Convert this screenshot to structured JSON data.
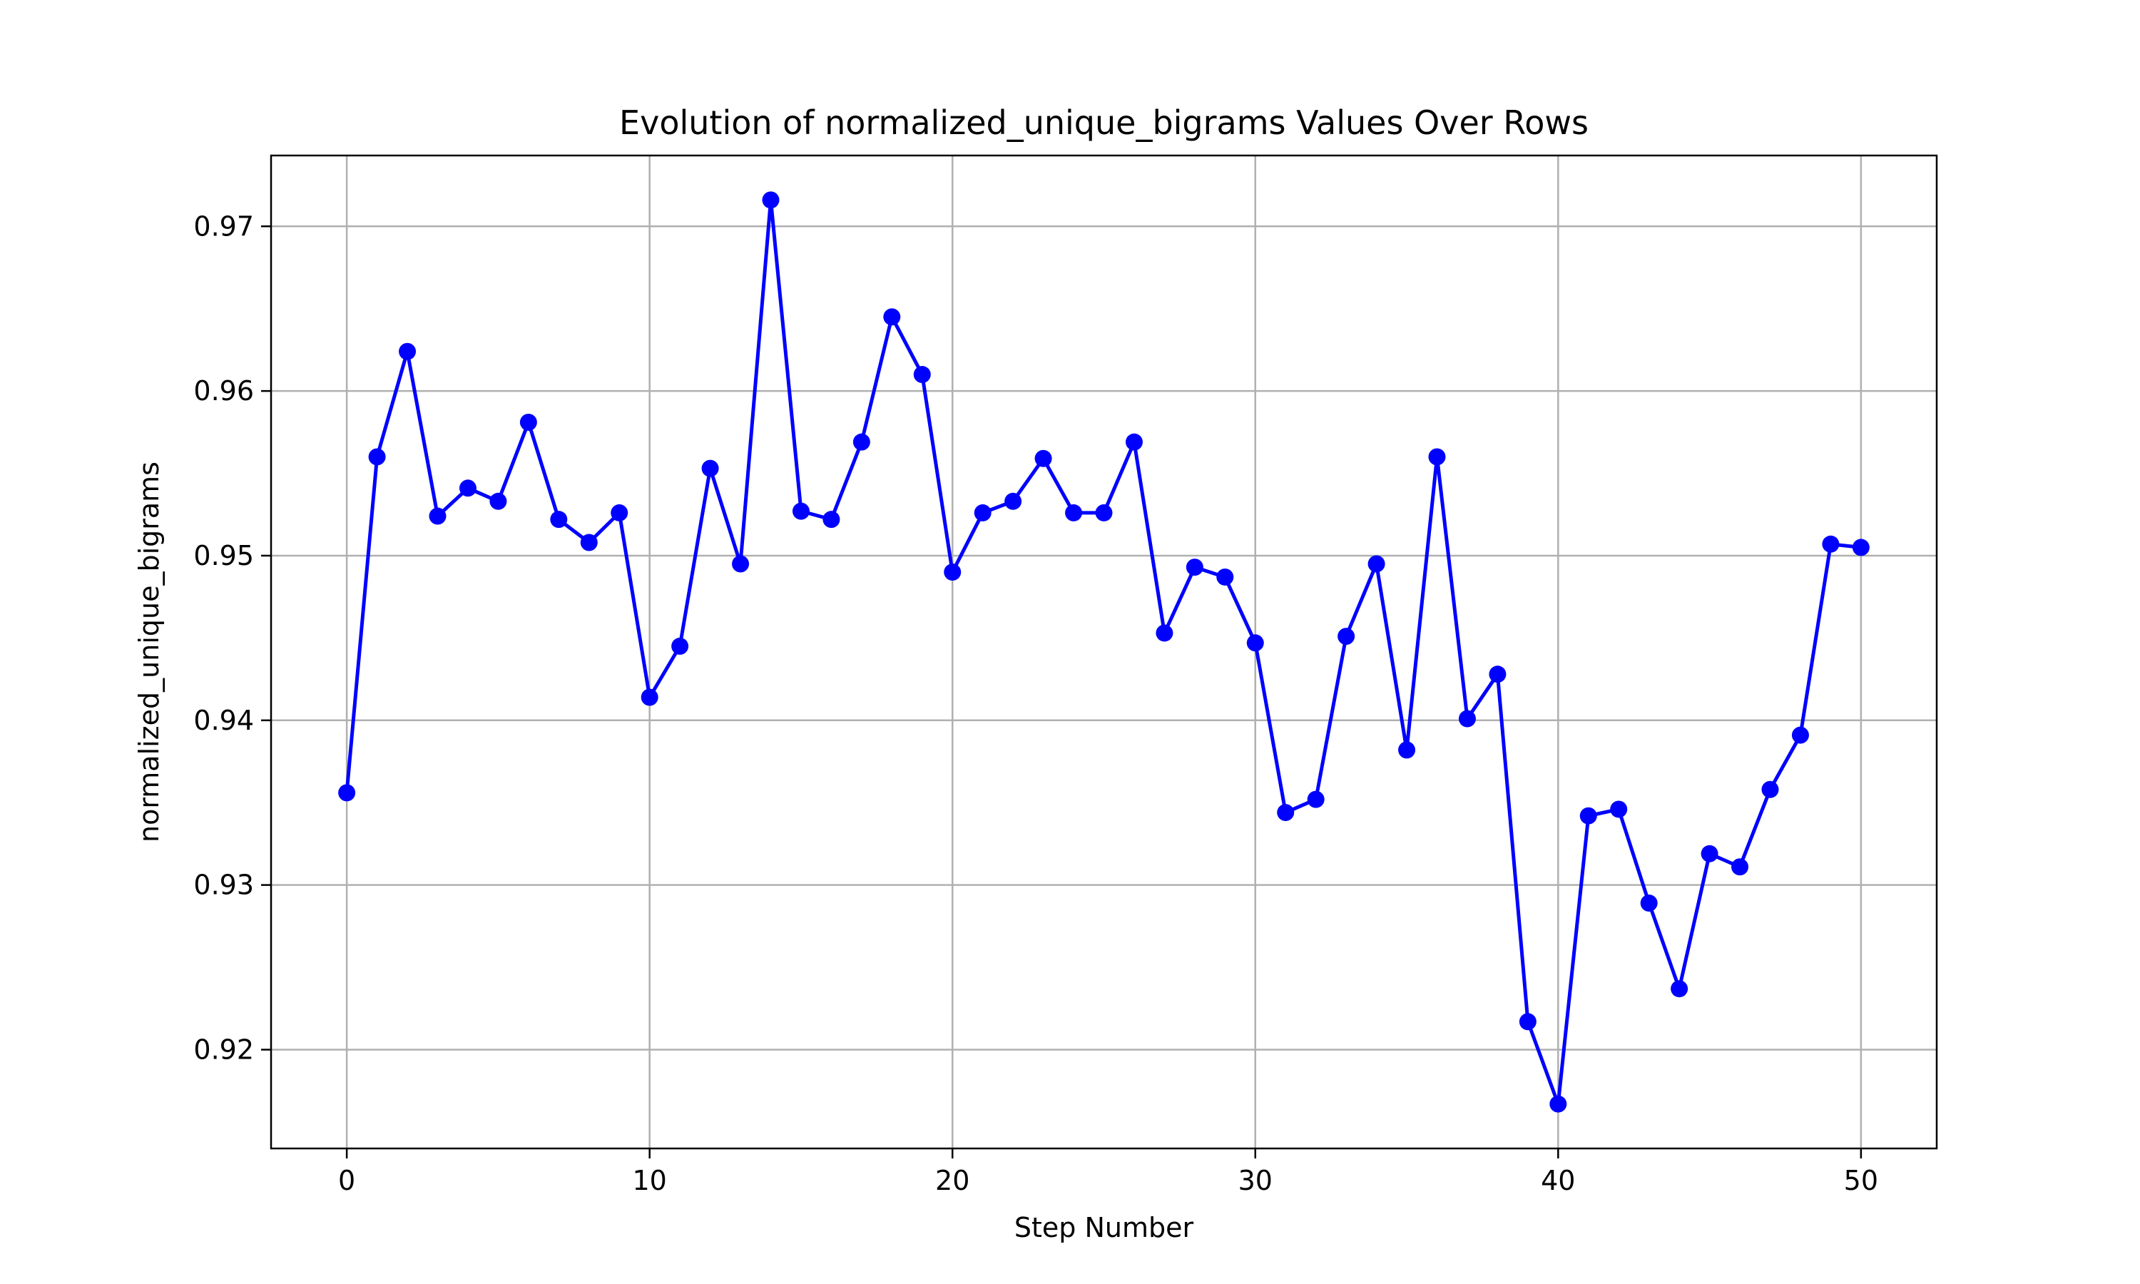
{
  "chart_data": {
    "type": "line",
    "title": "Evolution of normalized_unique_bigrams Values Over Rows",
    "xlabel": "Step Number",
    "ylabel": "normalized_unique_bigrams",
    "xlim": [
      -2.5,
      52.5
    ],
    "ylim": [
      0.914,
      0.9743
    ],
    "xticks": [
      0,
      10,
      20,
      30,
      40,
      50
    ],
    "xtick_labels": [
      "0",
      "10",
      "20",
      "30",
      "40",
      "50"
    ],
    "yticks": [
      0.92,
      0.93,
      0.94,
      0.95,
      0.96,
      0.97
    ],
    "ytick_labels": [
      "0.92",
      "0.93",
      "0.94",
      "0.95",
      "0.96",
      "0.97"
    ],
    "grid": true,
    "color": "#0000ff",
    "marker": "circle",
    "x": [
      0,
      1,
      2,
      3,
      4,
      5,
      6,
      7,
      8,
      9,
      10,
      11,
      12,
      13,
      14,
      15,
      16,
      17,
      18,
      19,
      20,
      21,
      22,
      23,
      24,
      25,
      26,
      27,
      28,
      29,
      30,
      31,
      32,
      33,
      34,
      35,
      36,
      37,
      38,
      39,
      40,
      41,
      42,
      43,
      44,
      45,
      46,
      47,
      48,
      49,
      50
    ],
    "y": [
      0.9356,
      0.956,
      0.9624,
      0.9524,
      0.9541,
      0.9533,
      0.9581,
      0.9522,
      0.9508,
      0.9526,
      0.9414,
      0.9445,
      0.9553,
      0.9495,
      0.9716,
      0.9527,
      0.9522,
      0.9569,
      0.9645,
      0.961,
      0.949,
      0.9526,
      0.9533,
      0.9559,
      0.9526,
      0.9526,
      0.9569,
      0.9453,
      0.9493,
      0.9487,
      0.9447,
      0.9344,
      0.9352,
      0.9451,
      0.9495,
      0.9382,
      0.956,
      0.9401,
      0.9428,
      0.9217,
      0.9167,
      0.9342,
      0.9346,
      0.9289,
      0.9237,
      0.9319,
      0.9311,
      0.9358,
      0.9391,
      0.9507,
      0.9505
    ]
  }
}
